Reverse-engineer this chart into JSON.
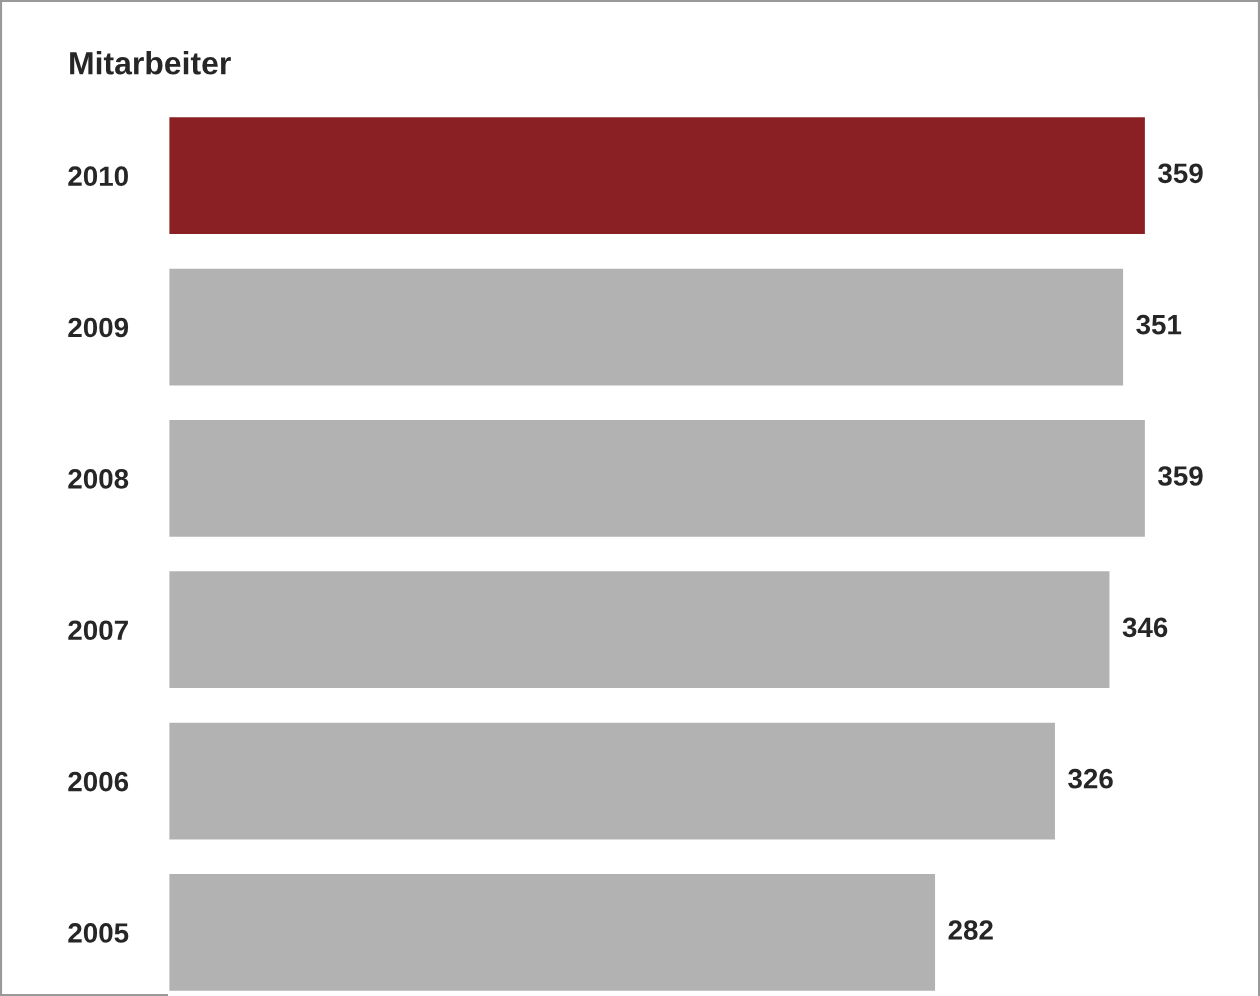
{
  "chart_data": {
    "type": "bar",
    "orientation": "horizontal",
    "title": "Mitarbeiter",
    "categories": [
      "2010",
      "2009",
      "2008",
      "2007",
      "2006",
      "2005"
    ],
    "values": [
      359,
      351,
      359,
      346,
      326,
      282
    ],
    "colors": [
      "#8b2024",
      "#b2b2b2",
      "#b2b2b2",
      "#b2b2b2",
      "#b2b2b2",
      "#b2b2b2"
    ],
    "xlim": [
      0,
      400
    ],
    "data_labels": true,
    "grid": false,
    "legend": false
  }
}
